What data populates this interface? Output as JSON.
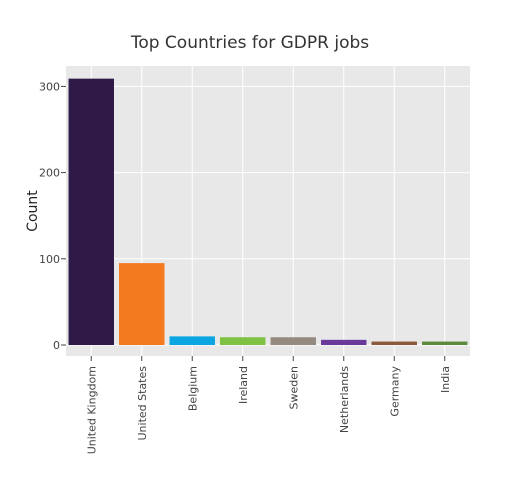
{
  "chart_data": {
    "type": "bar",
    "title": "Top Countries for GDPR jobs",
    "xlabel": "",
    "ylabel": "Count",
    "categories": [
      "United Kingdom",
      "United States",
      "Belgium",
      "Ireland",
      "Sweden",
      "Netherlands",
      "Germany",
      "India"
    ],
    "values": [
      309,
      95,
      10,
      9,
      9,
      6,
      4,
      4
    ],
    "colors": [
      "#2f1a47",
      "#f47a20",
      "#0aa6e1",
      "#7dc242",
      "#958a80",
      "#6a3a9a",
      "#8b5a3c",
      "#5c8a3c"
    ],
    "y_ticks": [
      0,
      100,
      200,
      300
    ],
    "ylim": [
      0,
      330
    ],
    "grid": true,
    "background": "#e8e8e8"
  }
}
